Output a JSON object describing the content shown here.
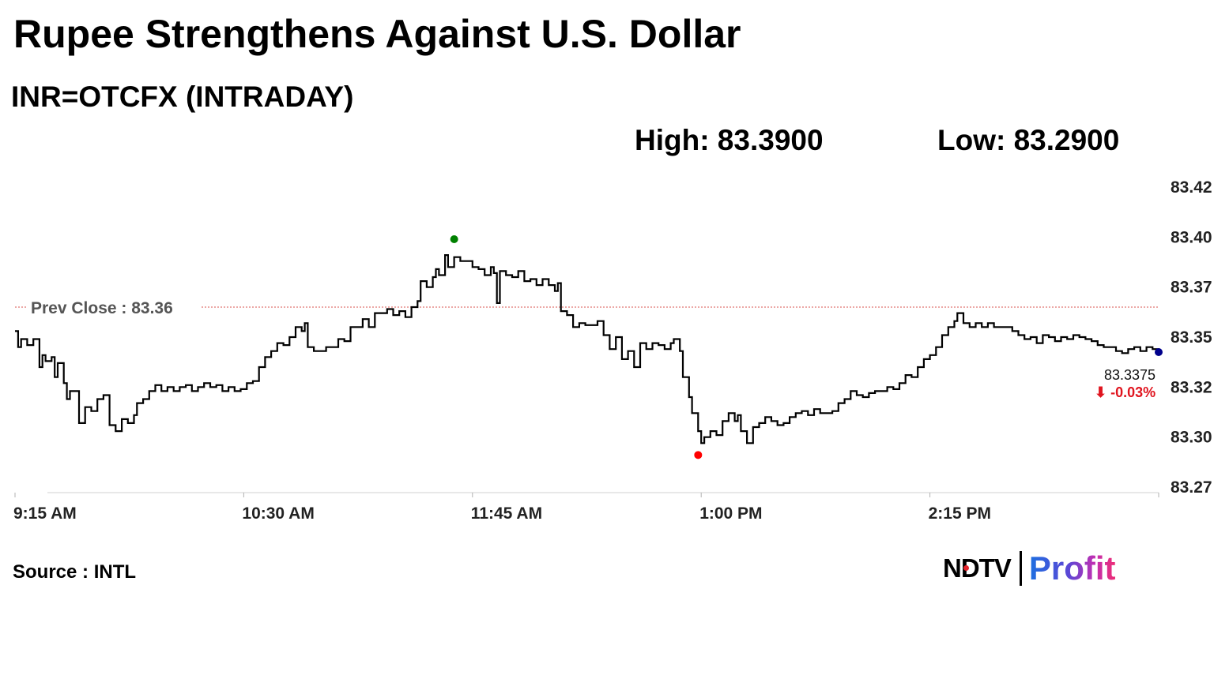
{
  "header": {
    "title": "Rupee Strengthens Against U.S. Dollar",
    "subtitle": "INR=OTCFX (INTRADAY)",
    "high_text": "High: 83.3900",
    "low_text": "Low: 83.2900"
  },
  "footer": {
    "source": "Source : INTL",
    "logo_ndtv": "NDTV",
    "logo_profit": "Profit"
  },
  "colors": {
    "line": "#000000",
    "prev_close_line": "#d9534f",
    "high_marker": "#008000",
    "low_marker": "#ff0000",
    "last_marker": "#00008b",
    "change_text": "#e0141e"
  },
  "chart_data": {
    "type": "line",
    "x_unit": "time of day (minutes from 9:15 AM)",
    "ylim": [
      83.27,
      83.42
    ],
    "xlim_minutes_from_915": [
      0,
      375
    ],
    "y_ticks": [
      "83.42",
      "83.40",
      "83.37",
      "83.35",
      "83.32",
      "83.30",
      "83.27"
    ],
    "x_ticks": [
      {
        "label": "9:15 AM",
        "t": 0
      },
      {
        "label": "10:30 AM",
        "t": 75
      },
      {
        "label": "11:45 AM",
        "t": 150
      },
      {
        "label": "1:00 PM",
        "t": 225
      },
      {
        "label": "2:15 PM",
        "t": 300
      }
    ],
    "prev_close": {
      "label": "Prev Close : 83.36",
      "value": 83.36
    },
    "high": {
      "t": 144,
      "value": 83.39
    },
    "low": {
      "t": 224,
      "value": 83.29
    },
    "last": {
      "t": 375,
      "value": 83.3375,
      "value_label": "83.3375",
      "change_label": "⬇ -0.03%"
    },
    "series": [
      {
        "points": [
          [
            0,
            83.348
          ],
          [
            1,
            83.34
          ],
          [
            2,
            83.344
          ],
          [
            4,
            83.341
          ],
          [
            6,
            83.344
          ],
          [
            7,
            83.344
          ],
          [
            8,
            83.33
          ],
          [
            9,
            83.336
          ],
          [
            10,
            83.333
          ],
          [
            12,
            83.335
          ],
          [
            13,
            83.325
          ],
          [
            14,
            83.332
          ],
          [
            16,
            83.322
          ],
          [
            17,
            83.314
          ],
          [
            18,
            83.318
          ],
          [
            20,
            83.318
          ],
          [
            21,
            83.302
          ],
          [
            23,
            83.31
          ],
          [
            25,
            83.308
          ],
          [
            27,
            83.314
          ],
          [
            29,
            83.316
          ],
          [
            31,
            83.301
          ],
          [
            33,
            83.298
          ],
          [
            35,
            83.304
          ],
          [
            37,
            83.302
          ],
          [
            39,
            83.306
          ],
          [
            40,
            83.312
          ],
          [
            42,
            83.314
          ],
          [
            44,
            83.318
          ],
          [
            46,
            83.321
          ],
          [
            48,
            83.318
          ],
          [
            50,
            83.32
          ],
          [
            52,
            83.318
          ],
          [
            54,
            83.32
          ],
          [
            56,
            83.321
          ],
          [
            58,
            83.318
          ],
          [
            60,
            83.32
          ],
          [
            62,
            83.322
          ],
          [
            64,
            83.32
          ],
          [
            66,
            83.321
          ],
          [
            68,
            83.318
          ],
          [
            70,
            83.32
          ],
          [
            72,
            83.318
          ],
          [
            74,
            83.319
          ],
          [
            76,
            83.322
          ],
          [
            78,
            83.323
          ],
          [
            80,
            83.33
          ],
          [
            82,
            83.335
          ],
          [
            84,
            83.338
          ],
          [
            86,
            83.342
          ],
          [
            88,
            83.341
          ],
          [
            90,
            83.345
          ],
          [
            92,
            83.35
          ],
          [
            94,
            83.348
          ],
          [
            95,
            83.352
          ],
          [
            96,
            83.34
          ],
          [
            98,
            83.338
          ],
          [
            100,
            83.338
          ],
          [
            102,
            83.34
          ],
          [
            104,
            83.34
          ],
          [
            106,
            83.344
          ],
          [
            108,
            83.343
          ],
          [
            110,
            83.35
          ],
          [
            112,
            83.35
          ],
          [
            114,
            83.354
          ],
          [
            116,
            83.35
          ],
          [
            118,
            83.357
          ],
          [
            120,
            83.357
          ],
          [
            122,
            83.359
          ],
          [
            124,
            83.356
          ],
          [
            126,
            83.358
          ],
          [
            128,
            83.355
          ],
          [
            130,
            83.36
          ],
          [
            132,
            83.363
          ],
          [
            133,
            83.373
          ],
          [
            135,
            83.37
          ],
          [
            137,
            83.375
          ],
          [
            138,
            83.379
          ],
          [
            139,
            83.376
          ],
          [
            141,
            83.386
          ],
          [
            142,
            83.38
          ],
          [
            144,
            83.385
          ],
          [
            146,
            83.383
          ],
          [
            148,
            83.383
          ],
          [
            150,
            83.38
          ],
          [
            152,
            83.379
          ],
          [
            154,
            83.376
          ],
          [
            156,
            83.38
          ],
          [
            157,
            83.377
          ],
          [
            158,
            83.362
          ],
          [
            159,
            83.378
          ],
          [
            161,
            83.376
          ],
          [
            163,
            83.375
          ],
          [
            165,
            83.378
          ],
          [
            167,
            83.373
          ],
          [
            169,
            83.374
          ],
          [
            171,
            83.371
          ],
          [
            173,
            83.374
          ],
          [
            175,
            83.371
          ],
          [
            177,
            83.368
          ],
          [
            178,
            83.372
          ],
          [
            179,
            83.358
          ],
          [
            181,
            83.356
          ],
          [
            183,
            83.35
          ],
          [
            185,
            83.352
          ],
          [
            187,
            83.351
          ],
          [
            189,
            83.351
          ],
          [
            191,
            83.353
          ],
          [
            193,
            83.346
          ],
          [
            195,
            83.339
          ],
          [
            197,
            83.345
          ],
          [
            199,
            83.334
          ],
          [
            201,
            83.338
          ],
          [
            203,
            83.33
          ],
          [
            205,
            83.342
          ],
          [
            207,
            83.339
          ],
          [
            209,
            83.342
          ],
          [
            211,
            83.341
          ],
          [
            213,
            83.339
          ],
          [
            215,
            83.342
          ],
          [
            216,
            83.344
          ],
          [
            218,
            83.338
          ],
          [
            219,
            83.325
          ],
          [
            221,
            83.315
          ],
          [
            222,
            83.307
          ],
          [
            224,
            83.298
          ],
          [
            225,
            83.292
          ],
          [
            226,
            83.295
          ],
          [
            228,
            83.298
          ],
          [
            230,
            83.296
          ],
          [
            232,
            83.303
          ],
          [
            234,
            83.307
          ],
          [
            236,
            83.303
          ],
          [
            237,
            83.306
          ],
          [
            238,
            83.298
          ],
          [
            240,
            83.292
          ],
          [
            242,
            83.3
          ],
          [
            244,
            83.302
          ],
          [
            246,
            83.305
          ],
          [
            248,
            83.303
          ],
          [
            250,
            83.301
          ],
          [
            252,
            83.302
          ],
          [
            254,
            83.305
          ],
          [
            256,
            83.307
          ],
          [
            258,
            83.308
          ],
          [
            260,
            83.306
          ],
          [
            262,
            83.309
          ],
          [
            264,
            83.307
          ],
          [
            266,
            83.307
          ],
          [
            268,
            83.308
          ],
          [
            270,
            83.312
          ],
          [
            272,
            83.314
          ],
          [
            274,
            83.318
          ],
          [
            276,
            83.316
          ],
          [
            278,
            83.315
          ],
          [
            280,
            83.317
          ],
          [
            282,
            83.318
          ],
          [
            284,
            83.318
          ],
          [
            286,
            83.32
          ],
          [
            288,
            83.319
          ],
          [
            290,
            83.322
          ],
          [
            292,
            83.326
          ],
          [
            294,
            83.325
          ],
          [
            296,
            83.33
          ],
          [
            298,
            83.334
          ],
          [
            300,
            83.336
          ],
          [
            302,
            83.34
          ],
          [
            304,
            83.346
          ],
          [
            306,
            83.35
          ],
          [
            308,
            83.353
          ],
          [
            309,
            83.357
          ],
          [
            311,
            83.352
          ],
          [
            313,
            83.35
          ],
          [
            315,
            83.352
          ],
          [
            317,
            83.35
          ],
          [
            319,
            83.352
          ],
          [
            321,
            83.35
          ],
          [
            323,
            83.35
          ],
          [
            325,
            83.35
          ],
          [
            327,
            83.348
          ],
          [
            329,
            83.346
          ],
          [
            331,
            83.344
          ],
          [
            333,
            83.345
          ],
          [
            335,
            83.342
          ],
          [
            337,
            83.346
          ],
          [
            339,
            83.345
          ],
          [
            341,
            83.343
          ],
          [
            343,
            83.345
          ],
          [
            345,
            83.344
          ],
          [
            347,
            83.346
          ],
          [
            349,
            83.345
          ],
          [
            351,
            83.344
          ],
          [
            353,
            83.343
          ],
          [
            355,
            83.341
          ],
          [
            357,
            83.34
          ],
          [
            359,
            83.34
          ],
          [
            361,
            83.338
          ],
          [
            363,
            83.337
          ],
          [
            365,
            83.339
          ],
          [
            367,
            83.34
          ],
          [
            369,
            83.338
          ],
          [
            371,
            83.34
          ],
          [
            373,
            83.339
          ],
          [
            375,
            83.3375
          ]
        ]
      }
    ]
  }
}
